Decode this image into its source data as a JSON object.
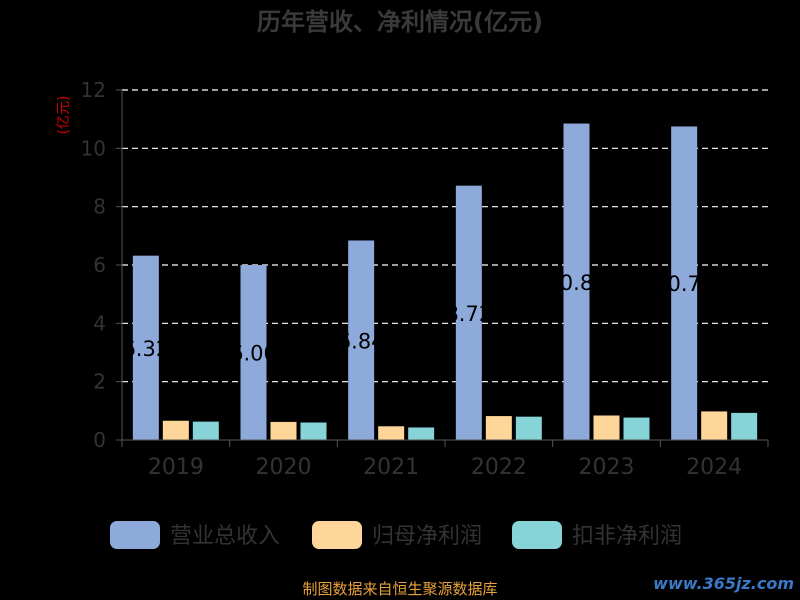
{
  "chart_data": {
    "type": "bar",
    "title": "历年营收、净利情况(亿元)",
    "ylabel": "(亿元)",
    "xlabel": "",
    "categories": [
      "2019",
      "2020",
      "2021",
      "2022",
      "2023",
      "2024"
    ],
    "ylim": [
      0,
      12
    ],
    "yticks": [
      0,
      2,
      4,
      6,
      8,
      10,
      12
    ],
    "grid": true,
    "legend_position": "bottom",
    "series": [
      {
        "name": "营业总收入",
        "color": "#8eaadb",
        "values": [
          6.32,
          6.0,
          6.84,
          8.72,
          10.85,
          10.75
        ],
        "labels": [
          "6.32",
          "6.00",
          "6.84",
          "8.72",
          "10.85",
          "10.75"
        ]
      },
      {
        "name": "归母净利润",
        "color": "#ffd699",
        "values": [
          0.66,
          0.62,
          0.47,
          0.82,
          0.84,
          0.98
        ]
      },
      {
        "name": "扣非净利润",
        "color": "#86d3d8",
        "values": [
          0.63,
          0.6,
          0.43,
          0.8,
          0.77,
          0.93
        ]
      }
    ]
  },
  "footer": {
    "source": "制图数据来自恒生聚源数据库",
    "watermark": "www.365jz.com"
  }
}
